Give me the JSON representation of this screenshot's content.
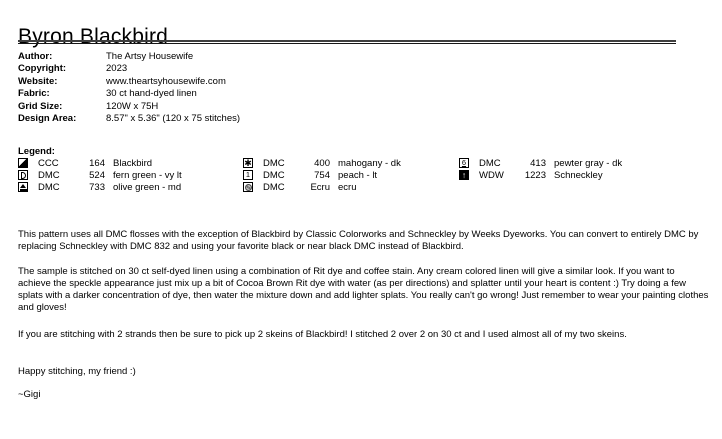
{
  "title": "Byron Blackbird",
  "meta": {
    "rows": [
      {
        "label": "Author:",
        "value": "The Artsy Housewife"
      },
      {
        "label": "Copyright:",
        "value": "2023"
      },
      {
        "label": "Website:",
        "value": "www.theartsyhousewife.com"
      },
      {
        "label": "Fabric:",
        "value": "30 ct hand-dyed linen"
      },
      {
        "label": "Grid Size:",
        "value": "120W x 75H"
      },
      {
        "label": "Design Area:",
        "value": "8.57\" x 5.36\"  (120 x 75 stitches)"
      }
    ]
  },
  "legend": {
    "heading": "Legend:",
    "columns": [
      [
        {
          "icon": "half-square-triangle",
          "brand": "CCC",
          "number": "164",
          "name": "Blackbird"
        },
        {
          "icon": "half-moon-d",
          "brand": "DMC",
          "number": "524",
          "name": "fern green - vy lt"
        },
        {
          "icon": "eject-symbol",
          "brand": "DMC",
          "number": "733",
          "name": "olive green - md"
        }
      ],
      [
        {
          "icon": "heavy-asterisk",
          "brand": "DMC",
          "number": "400",
          "name": "mahogany - dk"
        },
        {
          "icon": "digit-one",
          "brand": "DMC",
          "number": "754",
          "name": "peach - lt"
        },
        {
          "icon": "shaded-circle",
          "brand": "DMC",
          "number": "Ecru",
          "name": "ecru"
        }
      ],
      [
        {
          "icon": "digit-six-underlined",
          "brand": "DMC",
          "number": "413",
          "name": "pewter gray - dk"
        },
        {
          "icon": "filled-up-arrow",
          "brand": "WDW",
          "number": "1223",
          "name": "Schneckley"
        }
      ]
    ]
  },
  "icons": {
    "asterisk_glyph": "✱",
    "one_glyph": "1",
    "six_glyph": "6",
    "up_arrow_glyph": "↑"
  },
  "paragraphs": {
    "p1": "This pattern uses all DMC flosses with the exception of Blackbird by Classic Colorworks and Schneckley by Weeks Dyeworks. You can convert to entirely DMC by replacing Schneckley with DMC 832 and using your favorite black or near black DMC instead of Blackbird.",
    "p2": "The sample is stitched on 30 ct self-dyed linen using a combination of Rit dye and coffee stain. Any cream colored linen will give a similar look. If you want to achieve the speckle appearance just mix up a bit of Cocoa Brown Rit dye with water (as per directions) and splatter until your heart is content :) Try doing a few splats with a darker concentration of dye, then water the mixture down and add lighter splats. You really can't go wrong! Just remember to wear your painting clothes and gloves!",
    "p3": "If you are stitching with 2 strands then be sure to pick up 2 skeins of Blackbird! I stitched 2 over 2 on 30 ct and I used almost all of my two skeins.",
    "closing1": "Happy stitching, my friend :)",
    "closing2": "~Gigi"
  }
}
